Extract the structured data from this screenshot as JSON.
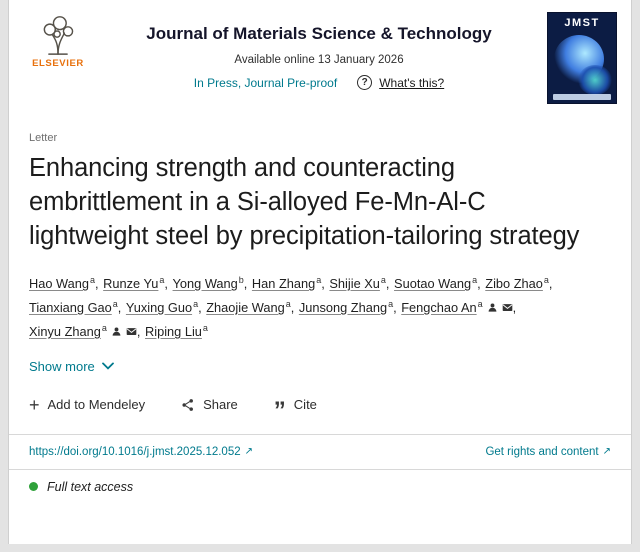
{
  "accent_colors": {
    "teal": "#007a8d",
    "orange": "#e8710d",
    "green": "#2fa13a",
    "cover_navy": "#0c1c44"
  },
  "header": {
    "publisher": "ELSEVIER",
    "journal_title": "Journal of Materials Science & Technology",
    "available_online": "Available online 13 January 2026",
    "in_press_label": "In Press, Journal Pre-proof",
    "whats_this_label": "What's this?",
    "cover_title": "JMST"
  },
  "article": {
    "type_label": "Letter",
    "title": "Enhancing strength and counteracting embrittlement in a Si-alloyed Fe-Mn-Al-C lightweight steel by precipitation-tailoring strategy",
    "show_more_label": "Show more",
    "authors": [
      {
        "name": "Hao Wang",
        "affiliation": "a",
        "icons": false
      },
      {
        "name": "Runze Yu",
        "affiliation": "a",
        "icons": false
      },
      {
        "name": "Yong Wang",
        "affiliation": "b",
        "icons": false
      },
      {
        "name": "Han Zhang",
        "affiliation": "a",
        "icons": false
      },
      {
        "name": "Shijie Xu",
        "affiliation": "a",
        "icons": false
      },
      {
        "name": "Suotao Wang",
        "affiliation": "a",
        "icons": false
      },
      {
        "name": "Zibo Zhao",
        "affiliation": "a",
        "icons": false
      },
      {
        "name": "Tianxiang Gao",
        "affiliation": "a",
        "icons": false
      },
      {
        "name": "Yuxing Guo",
        "affiliation": "a",
        "icons": false
      },
      {
        "name": "Zhaojie Wang",
        "affiliation": "a",
        "icons": false
      },
      {
        "name": "Junsong Zhang",
        "affiliation": "a",
        "icons": false
      },
      {
        "name": "Fengchao An",
        "affiliation": "a",
        "icons": true
      },
      {
        "name": "Xinyu Zhang",
        "affiliation": "a",
        "icons": true
      },
      {
        "name": "Riping Liu",
        "affiliation": "a",
        "icons": false
      }
    ]
  },
  "actions": {
    "mendeley_label": "Add to Mendeley",
    "share_label": "Share",
    "cite_label": "Cite"
  },
  "icons": {
    "plus": "+",
    "external_link": "↗",
    "question_mark": "?",
    "cite_quote": "”"
  },
  "footer": {
    "doi": "https://doi.org/10.1016/j.jmst.2025.12.052",
    "rights_label": "Get rights and content",
    "access_label": "Full text access"
  }
}
